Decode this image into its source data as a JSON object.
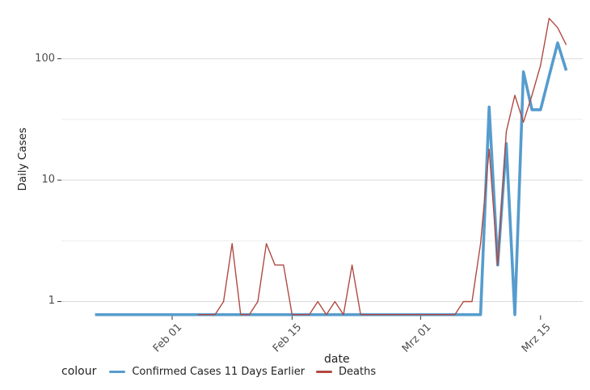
{
  "chart_data": {
    "type": "line",
    "title": "",
    "x_axis": {
      "label": "date",
      "scale": "date",
      "ticks": [
        {
          "label": "Feb 01",
          "date": "2020-02-01"
        },
        {
          "label": "Feb 15",
          "date": "2020-02-15"
        },
        {
          "label": "Mrz 01",
          "date": "2020-03-01"
        },
        {
          "label": "Mrz 15",
          "date": "2020-03-15"
        }
      ]
    },
    "y_axis": {
      "label": "Daily Cases",
      "scale": "log10",
      "ticks": [
        {
          "label": "1",
          "value": 1
        },
        {
          "label": "10",
          "value": 10
        },
        {
          "label": "100",
          "value": 100
        }
      ],
      "range_shown": [
        0.7,
        230
      ]
    },
    "legend": {
      "title": "colour",
      "position": "bottom",
      "entries": [
        {
          "label": "Confirmed Cases 11 Days Earlier",
          "color": "#569ccd"
        },
        {
          "label": "Deaths",
          "color": "#b04a42"
        }
      ]
    },
    "colors": {
      "major_gridline": "#d9d9d9",
      "minor_gridline": "#ececec",
      "tick_mark": "#333333",
      "axis_text": "#4d4d4d"
    },
    "series": [
      {
        "name": "Confirmed Cases 11 Days Earlier",
        "key": "confirmed-cases-11-days-earlier",
        "color": "#569ccd",
        "stroke_width": 3.6,
        "points": [
          [
            "2020-01-23",
            0.78
          ],
          [
            "2020-01-24",
            0.78
          ],
          [
            "2020-01-25",
            0.78
          ],
          [
            "2020-01-26",
            0.78
          ],
          [
            "2020-01-27",
            0.78
          ],
          [
            "2020-01-28",
            0.78
          ],
          [
            "2020-01-29",
            0.78
          ],
          [
            "2020-01-30",
            0.78
          ],
          [
            "2020-01-31",
            0.78
          ],
          [
            "2020-02-01",
            0.78
          ],
          [
            "2020-02-02",
            0.78
          ],
          [
            "2020-02-03",
            0.78
          ],
          [
            "2020-02-04",
            0.78
          ],
          [
            "2020-02-05",
            0.78
          ],
          [
            "2020-02-06",
            0.78
          ],
          [
            "2020-02-07",
            0.78
          ],
          [
            "2020-02-08",
            0.78
          ],
          [
            "2020-02-09",
            0.78
          ],
          [
            "2020-02-10",
            0.78
          ],
          [
            "2020-02-11",
            0.78
          ],
          [
            "2020-02-12",
            0.78
          ],
          [
            "2020-02-13",
            0.78
          ],
          [
            "2020-02-14",
            0.78
          ],
          [
            "2020-02-15",
            0.78
          ],
          [
            "2020-02-16",
            0.78
          ],
          [
            "2020-02-17",
            0.78
          ],
          [
            "2020-02-18",
            0.78
          ],
          [
            "2020-02-19",
            0.78
          ],
          [
            "2020-02-20",
            0.78
          ],
          [
            "2020-02-21",
            0.78
          ],
          [
            "2020-02-22",
            0.78
          ],
          [
            "2020-02-23",
            0.78
          ],
          [
            "2020-02-24",
            0.78
          ],
          [
            "2020-02-25",
            0.78
          ],
          [
            "2020-02-26",
            0.78
          ],
          [
            "2020-02-27",
            0.78
          ],
          [
            "2020-02-28",
            0.78
          ],
          [
            "2020-02-29",
            0.78
          ],
          [
            "2020-03-01",
            0.78
          ],
          [
            "2020-03-02",
            0.78
          ],
          [
            "2020-03-03",
            0.78
          ],
          [
            "2020-03-04",
            0.78
          ],
          [
            "2020-03-05",
            0.78
          ],
          [
            "2020-03-06",
            0.78
          ],
          [
            "2020-03-07",
            0.78
          ],
          [
            "2020-03-08",
            0.78
          ],
          [
            "2020-03-09",
            40
          ],
          [
            "2020-03-10",
            2
          ],
          [
            "2020-03-11",
            20
          ],
          [
            "2020-03-12",
            0.78
          ],
          [
            "2020-03-13",
            78
          ],
          [
            "2020-03-14",
            38
          ],
          [
            "2020-03-15",
            38
          ],
          [
            "2020-03-16",
            72
          ],
          [
            "2020-03-17",
            135
          ],
          [
            "2020-03-18",
            80
          ]
        ]
      },
      {
        "name": "Deaths",
        "key": "deaths",
        "color": "#b04a42",
        "stroke_width": 1.4,
        "points": [
          [
            "2020-02-04",
            0.78
          ],
          [
            "2020-02-05",
            0.78
          ],
          [
            "2020-02-06",
            0.78
          ],
          [
            "2020-02-07",
            1
          ],
          [
            "2020-02-08",
            3
          ],
          [
            "2020-02-09",
            0.78
          ],
          [
            "2020-02-10",
            0.78
          ],
          [
            "2020-02-11",
            1
          ],
          [
            "2020-02-12",
            3
          ],
          [
            "2020-02-13",
            2
          ],
          [
            "2020-02-14",
            2
          ],
          [
            "2020-02-15",
            0.78
          ],
          [
            "2020-02-16",
            0.78
          ],
          [
            "2020-02-17",
            0.78
          ],
          [
            "2020-02-18",
            1
          ],
          [
            "2020-02-19",
            0.78
          ],
          [
            "2020-02-20",
            1
          ],
          [
            "2020-02-21",
            0.78
          ],
          [
            "2020-02-22",
            2
          ],
          [
            "2020-02-23",
            0.78
          ],
          [
            "2020-02-24",
            0.78
          ],
          [
            "2020-02-25",
            0.78
          ],
          [
            "2020-02-26",
            0.78
          ],
          [
            "2020-02-27",
            0.78
          ],
          [
            "2020-02-28",
            0.78
          ],
          [
            "2020-02-29",
            0.78
          ],
          [
            "2020-03-01",
            0.78
          ],
          [
            "2020-03-02",
            0.78
          ],
          [
            "2020-03-03",
            0.78
          ],
          [
            "2020-03-04",
            0.78
          ],
          [
            "2020-03-05",
            0.78
          ],
          [
            "2020-03-06",
            1
          ],
          [
            "2020-03-07",
            1
          ],
          [
            "2020-03-08",
            3
          ],
          [
            "2020-03-09",
            18
          ],
          [
            "2020-03-10",
            2
          ],
          [
            "2020-03-11",
            25
          ],
          [
            "2020-03-12",
            50
          ],
          [
            "2020-03-13",
            30
          ],
          [
            "2020-03-14",
            50
          ],
          [
            "2020-03-15",
            88
          ],
          [
            "2020-03-16",
            215
          ],
          [
            "2020-03-17",
            180
          ],
          [
            "2020-03-18",
            130
          ]
        ]
      }
    ]
  }
}
